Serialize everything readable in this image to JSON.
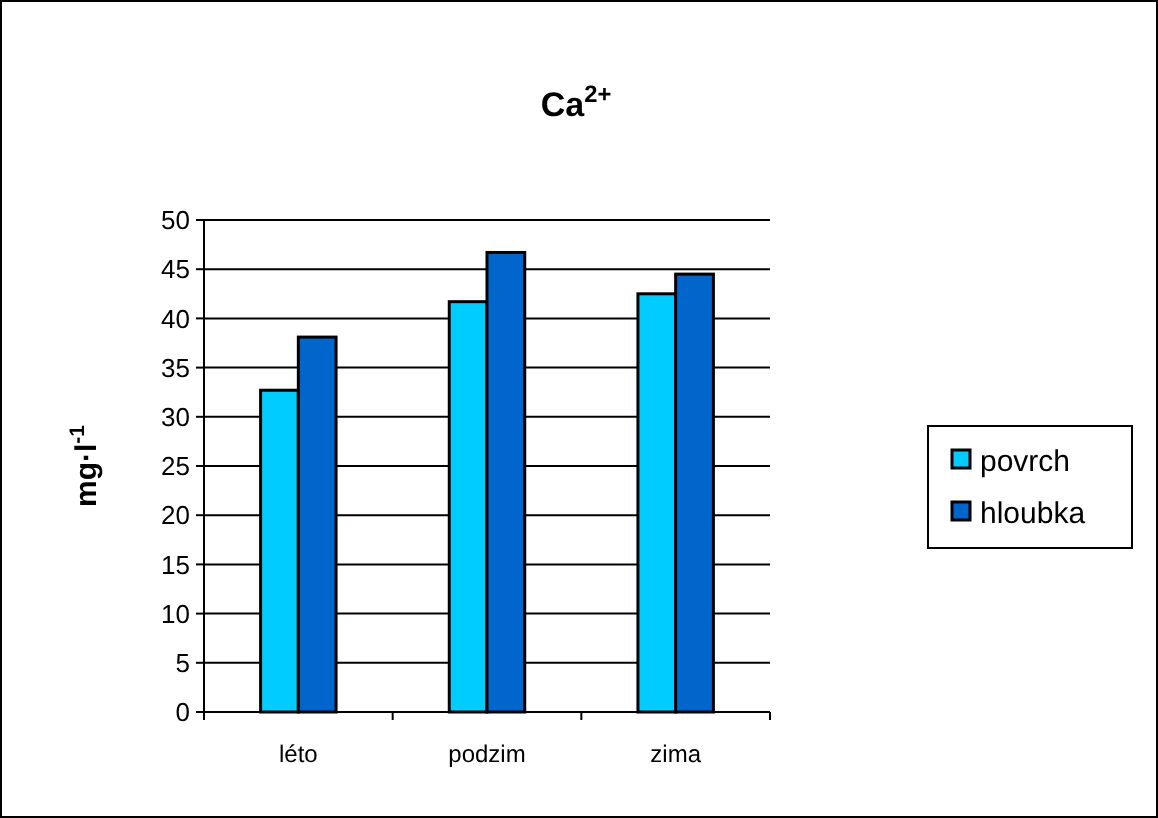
{
  "chart_data": {
    "type": "bar",
    "title": "Ca$^{2+}$",
    "ylabel": "mg·l$^{-1}$",
    "categories": [
      "léto",
      "podzim",
      "zima"
    ],
    "series": [
      {
        "name": "povrch",
        "color": "#00ccff",
        "values": [
          32.7,
          41.7,
          42.5
        ]
      },
      {
        "name": "hloubka",
        "color": "#0066cc",
        "values": [
          38.1,
          46.7,
          44.5
        ]
      }
    ],
    "ylim": [
      0,
      50
    ],
    "yticks": [
      0,
      5,
      10,
      15,
      20,
      25,
      30,
      35,
      40,
      45,
      50
    ],
    "grid": "y",
    "legend": "right"
  }
}
